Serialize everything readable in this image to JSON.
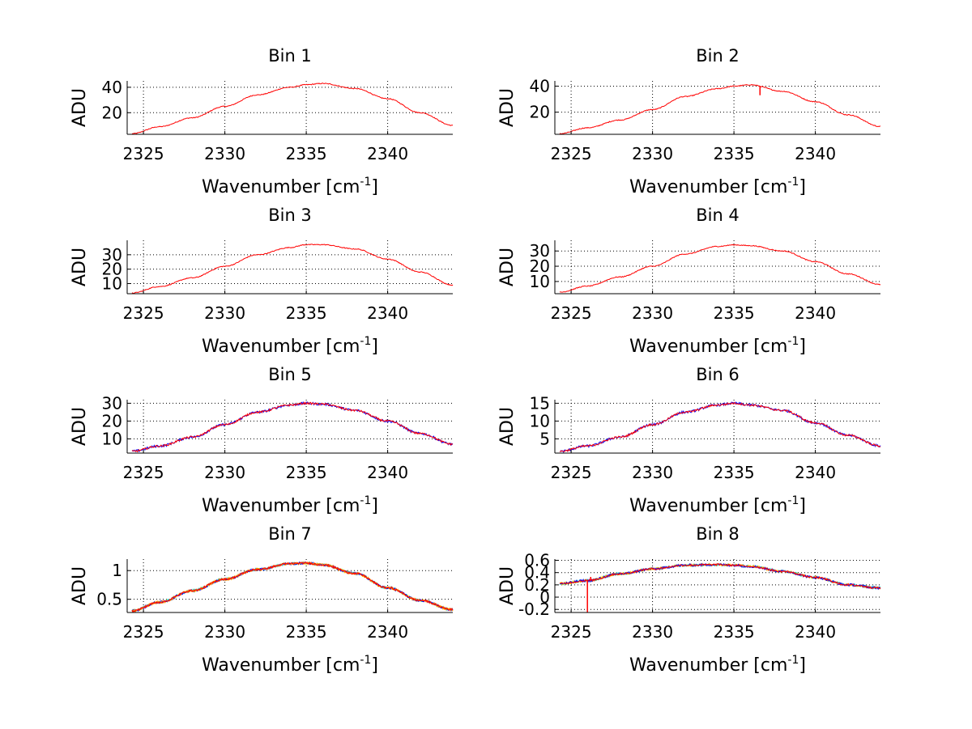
{
  "figure": {
    "background": "#ffffff"
  },
  "chart_data": [
    {
      "type": "line",
      "title": "Bin 1",
      "xlabel": "Wavenumber [cm",
      "xlabel_sup": "-1",
      "xlabel_tail": "]",
      "ylabel": "ADU",
      "xlim": [
        2324,
        2344
      ],
      "ylim": [
        3,
        45
      ],
      "grid": true,
      "xticks": [
        2325,
        2330,
        2335,
        2340
      ],
      "xtick_labels": [
        "2325",
        "2330",
        "2335",
        "2340"
      ],
      "yticks": [
        20,
        40
      ],
      "ytick_labels": [
        "20",
        "40"
      ],
      "series": [
        {
          "color": "#ff0000",
          "x": [
            2324.3,
            2326,
            2328,
            2330,
            2332,
            2334,
            2335,
            2336,
            2338,
            2340,
            2342,
            2344
          ],
          "y": [
            3.5,
            9,
            16,
            25,
            34,
            40,
            42,
            43,
            39,
            31,
            20,
            10
          ]
        }
      ],
      "spikes": [],
      "noise_colors": []
    },
    {
      "type": "line",
      "title": "Bin 2",
      "xlabel": "Wavenumber [cm",
      "xlabel_sup": "-1",
      "xlabel_tail": "]",
      "ylabel": "ADU",
      "xlim": [
        2324,
        2344
      ],
      "ylim": [
        3,
        44
      ],
      "grid": true,
      "xticks": [
        2325,
        2330,
        2335,
        2340
      ],
      "xtick_labels": [
        "2325",
        "2330",
        "2335",
        "2340"
      ],
      "yticks": [
        20,
        40
      ],
      "ytick_labels": [
        "20",
        "40"
      ],
      "series": [
        {
          "color": "#ff0000",
          "x": [
            2324.3,
            2326,
            2328,
            2330,
            2332,
            2334,
            2335,
            2336,
            2338,
            2340,
            2342,
            2344
          ],
          "y": [
            3.5,
            8,
            14,
            22,
            32,
            38,
            40,
            41,
            36,
            28,
            18,
            9
          ]
        }
      ],
      "spikes": [
        {
          "x": 2336.6,
          "y": 33
        }
      ],
      "noise_colors": []
    },
    {
      "type": "line",
      "title": "Bin 3",
      "xlabel": "Wavenumber [cm",
      "xlabel_sup": "-1",
      "xlabel_tail": "]",
      "ylabel": "ADU",
      "xlim": [
        2324,
        2344
      ],
      "ylim": [
        3,
        40
      ],
      "grid": true,
      "xticks": [
        2325,
        2330,
        2335,
        2340
      ],
      "xtick_labels": [
        "2325",
        "2330",
        "2335",
        "2340"
      ],
      "yticks": [
        10,
        20,
        30
      ],
      "ytick_labels": [
        "10",
        "20",
        "30"
      ],
      "series": [
        {
          "color": "#ff0000",
          "x": [
            2324.3,
            2326,
            2328,
            2330,
            2332,
            2334,
            2335,
            2336,
            2338,
            2340,
            2342,
            2344
          ],
          "y": [
            3.5,
            8,
            14,
            22,
            30,
            35,
            37,
            37,
            34,
            27,
            18,
            9
          ]
        }
      ],
      "spikes": [],
      "noise_colors": []
    },
    {
      "type": "line",
      "title": "Bin 4",
      "xlabel": "Wavenumber [cm",
      "xlabel_sup": "-1",
      "xlabel_tail": "]",
      "ylabel": "ADU",
      "xlim": [
        2324,
        2344
      ],
      "ylim": [
        2,
        37
      ],
      "grid": true,
      "xticks": [
        2325,
        2330,
        2335,
        2340
      ],
      "xtick_labels": [
        "2325",
        "2330",
        "2335",
        "2340"
      ],
      "yticks": [
        10,
        20,
        30
      ],
      "ytick_labels": [
        "10",
        "20",
        "30"
      ],
      "series": [
        {
          "color": "#ff0000",
          "x": [
            2324.3,
            2326,
            2328,
            2330,
            2332,
            2334,
            2335,
            2336,
            2338,
            2340,
            2342,
            2344
          ],
          "y": [
            3,
            7,
            13,
            20,
            28,
            33,
            34,
            33.5,
            30,
            23,
            15,
            8
          ]
        }
      ],
      "spikes": [],
      "noise_colors": []
    },
    {
      "type": "line",
      "title": "Bin 5",
      "xlabel": "Wavenumber [cm",
      "xlabel_sup": "-1",
      "xlabel_tail": "]",
      "ylabel": "ADU",
      "xlim": [
        2324,
        2344
      ],
      "ylim": [
        2,
        32
      ],
      "grid": true,
      "xticks": [
        2325,
        2330,
        2335,
        2340
      ],
      "xtick_labels": [
        "2325",
        "2330",
        "2335",
        "2340"
      ],
      "yticks": [
        10,
        20,
        30
      ],
      "ytick_labels": [
        "10",
        "20",
        "30"
      ],
      "series": [
        {
          "color": "#ff0000",
          "x": [
            2324.3,
            2326,
            2328,
            2330,
            2332,
            2334,
            2335,
            2336,
            2338,
            2340,
            2342,
            2344
          ],
          "y": [
            3,
            6,
            11,
            18,
            25,
            29,
            30,
            29.5,
            26,
            20,
            13,
            7
          ]
        }
      ],
      "spikes": [],
      "noise_colors": [
        "#0000ff"
      ]
    },
    {
      "type": "line",
      "title": "Bin 6",
      "xlabel": "Wavenumber [cm",
      "xlabel_sup": "-1",
      "xlabel_tail": "]",
      "ylabel": "ADU",
      "xlim": [
        2324,
        2344
      ],
      "ylim": [
        1,
        16
      ],
      "grid": true,
      "xticks": [
        2325,
        2330,
        2335,
        2340
      ],
      "xtick_labels": [
        "2325",
        "2330",
        "2335",
        "2340"
      ],
      "yticks": [
        5,
        10,
        15
      ],
      "ytick_labels": [
        "5",
        "10",
        "15"
      ],
      "series": [
        {
          "color": "#ff0000",
          "x": [
            2324.3,
            2326,
            2328,
            2330,
            2332,
            2334,
            2335,
            2336,
            2338,
            2340,
            2342,
            2344
          ],
          "y": [
            1.5,
            3,
            5.5,
            9,
            12.5,
            14.5,
            15,
            14.5,
            13,
            9.5,
            6,
            3
          ]
        }
      ],
      "spikes": [],
      "noise_colors": [
        "#0000ff"
      ]
    },
    {
      "type": "line",
      "title": "Bin 7",
      "xlabel": "Wavenumber [cm",
      "xlabel_sup": "-1",
      "xlabel_tail": "]",
      "ylabel": "ADU",
      "xlim": [
        2324,
        2344
      ],
      "ylim": [
        0.27,
        1.2
      ],
      "grid": true,
      "xticks": [
        2325,
        2330,
        2335,
        2340
      ],
      "xtick_labels": [
        "2325",
        "2330",
        "2335",
        "2340"
      ],
      "yticks": [
        0.5,
        1
      ],
      "ytick_labels": [
        "0.5",
        "1"
      ],
      "series": [
        {
          "color": "#ff0000",
          "x": [
            2324.3,
            2326,
            2328,
            2330,
            2332,
            2334,
            2335,
            2336,
            2338,
            2340,
            2342,
            2344
          ],
          "y": [
            0.3,
            0.45,
            0.65,
            0.85,
            1.02,
            1.12,
            1.13,
            1.1,
            0.95,
            0.7,
            0.48,
            0.32
          ]
        }
      ],
      "spikes": [],
      "noise_colors": [
        "#00cccc",
        "#ffcc00",
        "#0000ff",
        "#ff8800"
      ]
    },
    {
      "type": "line",
      "title": "Bin 8",
      "xlabel": "Wavenumber [cm",
      "xlabel_sup": "-1",
      "xlabel_tail": "]",
      "ylabel": "ADU",
      "xlim": [
        2324,
        2344
      ],
      "ylim": [
        -0.25,
        0.62
      ],
      "grid": true,
      "xticks": [
        2325,
        2330,
        2335,
        2340
      ],
      "xtick_labels": [
        "2325",
        "2330",
        "2335",
        "2340"
      ],
      "yticks": [
        -0.2,
        0,
        0.2,
        0.4,
        0.6
      ],
      "ytick_labels": [
        "-0.2",
        "0",
        "0.2",
        "0.4",
        "0.6"
      ],
      "series": [
        {
          "color": "#ff0000",
          "x": [
            2324.3,
            2326,
            2328,
            2330,
            2332,
            2334,
            2335,
            2336,
            2338,
            2340,
            2342,
            2344
          ],
          "y": [
            0.22,
            0.27,
            0.38,
            0.46,
            0.52,
            0.53,
            0.52,
            0.5,
            0.42,
            0.32,
            0.2,
            0.15
          ]
        }
      ],
      "spikes": [
        {
          "x": 2326.0,
          "y": -0.25
        },
        {
          "x": 2326.2,
          "y": 0.33
        }
      ],
      "noise_colors": [
        "#00cccc",
        "#ffcc00",
        "#0000ff"
      ]
    }
  ]
}
